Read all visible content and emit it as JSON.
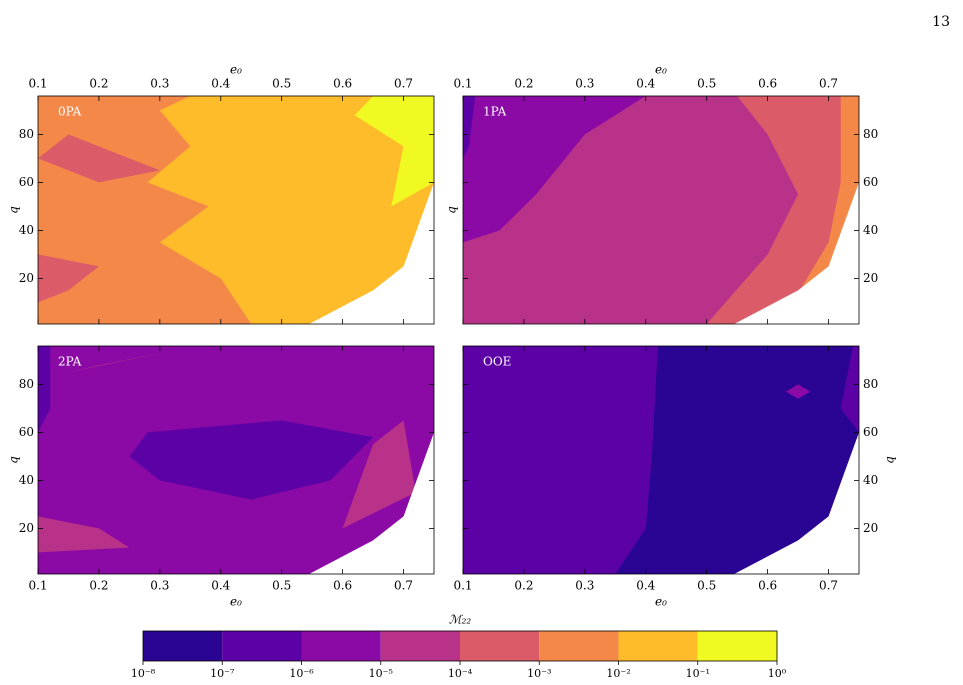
{
  "page_number": "13",
  "chart_data": [
    {
      "type": "contour",
      "label": "0PA",
      "xlabel": "e₀",
      "ylabel": "q",
      "xlim": [
        0.1,
        0.75
      ],
      "xticks": [
        0.1,
        0.2,
        0.3,
        0.4,
        0.5,
        0.6,
        0.7
      ],
      "ylim": [
        1,
        96
      ],
      "yticks": [
        20,
        40,
        60,
        80
      ]
    },
    {
      "type": "contour",
      "label": "1PA",
      "xlabel": "e₀",
      "ylabel": "q",
      "xlim": [
        0.1,
        0.75
      ],
      "xticks": [
        0.1,
        0.2,
        0.3,
        0.4,
        0.5,
        0.6,
        0.7
      ],
      "ylim": [
        1,
        96
      ],
      "yticks": [
        20,
        40,
        60,
        80
      ]
    },
    {
      "type": "contour",
      "label": "2PA",
      "xlabel": "e₀",
      "ylabel": "q",
      "xlim": [
        0.1,
        0.75
      ],
      "xticks": [
        0.1,
        0.2,
        0.3,
        0.4,
        0.5,
        0.6,
        0.7
      ],
      "ylim": [
        1,
        96
      ],
      "yticks": [
        20,
        40,
        60,
        80
      ]
    },
    {
      "type": "contour",
      "label": "OOE",
      "xlabel": "e₀",
      "ylabel": "q",
      "xlim": [
        0.1,
        0.75
      ],
      "xticks": [
        0.1,
        0.2,
        0.3,
        0.4,
        0.5,
        0.6,
        0.7
      ],
      "ylim": [
        1,
        96
      ],
      "yticks": [
        20,
        40,
        60,
        80
      ]
    },
    {
      "type": "colorbar",
      "label": "ℳ₂₂",
      "xlim": [
        -8,
        0
      ],
      "xticks": [
        {
          "value": -8,
          "label": "10⁻⁸"
        },
        {
          "value": -7,
          "label": "10⁻⁷"
        },
        {
          "value": -6,
          "label": "10⁻⁶"
        },
        {
          "value": -5,
          "label": "10⁻⁵"
        },
        {
          "value": -4,
          "label": "10⁻⁴"
        },
        {
          "value": -3,
          "label": "10⁻³"
        },
        {
          "value": -2,
          "label": "10⁻²"
        },
        {
          "value": -1,
          "label": "10⁻¹"
        },
        {
          "value": 0,
          "label": "10⁰"
        }
      ],
      "colors": [
        "#2a0593",
        "#5c01a6",
        "#8b0aa5",
        "#b83289",
        "#db5c68",
        "#f48849",
        "#febc2a",
        "#f0f921"
      ]
    }
  ]
}
